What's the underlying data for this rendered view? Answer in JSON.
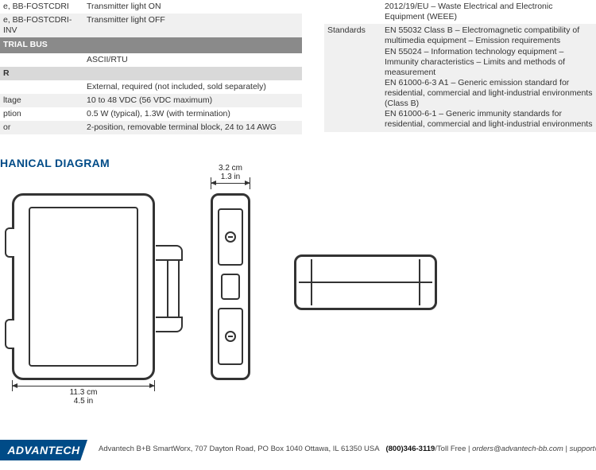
{
  "left_table": {
    "rows": [
      {
        "cls": "row-plain",
        "c0": "e, BB-FOSTCDRI",
        "c1": "Transmitter light ON"
      },
      {
        "cls": "row-alt",
        "c0": "e, BB-FOSTCDRI-INV",
        "c1": "Transmitter light OFF"
      }
    ],
    "section1_hdr": "TRIAL BUS",
    "section1_rows": [
      {
        "cls": "row-plain",
        "c0": "",
        "c1": "ASCII/RTU"
      }
    ],
    "section2_hdr": "R",
    "section2_rows": [
      {
        "cls": "row-plain",
        "c0": "",
        "c1": "External, required (not included, sold separately)"
      },
      {
        "cls": "row-alt",
        "c0": "ltage",
        "c1": "10 to 48 VDC (56 VDC maximum)"
      },
      {
        "cls": "row-plain",
        "c0": "ption",
        "c1": "0.5 W (typical), 1.3W (with termination)"
      },
      {
        "cls": "row-alt",
        "c0": "or",
        "c1": "2-position, removable terminal block, 24 to 14 AWG"
      }
    ]
  },
  "right_table": {
    "rows": [
      {
        "cls": "row-plain",
        "c0": "",
        "c1": "2012/19/EU – Waste Electrical and Electronic Equipment (WEEE)"
      },
      {
        "cls": "row-alt",
        "c0": "Standards",
        "c1": "EN 55032 Class B – Electromagnetic compatibility of multimedia equipment – Emission requirements\nEN 55024 – Information technology equipment – Immunity characteristics – Limits and methods of measurement\nEN 61000-6-3 A1 – Generic emission standard for residential, commercial and light-industrial environments (Class B)\nEN 61000-6-1 – Generic immunity standards for residential, commercial and light-industrial environments"
      }
    ]
  },
  "mech": {
    "title": "HANICAL DIAGRAM",
    "width_label_cm": "11.3 cm",
    "width_label_in": "4.5 in",
    "depth_label_cm": "3.2 cm",
    "depth_label_in": "1.3 in"
  },
  "footer": {
    "logo": "ADVANTECH",
    "addr": "Advantech B+B SmartWorx, 707 Dayton Road, PO Box 1040 Ottawa, IL 61350 USA",
    "phone": "(800)346-3119",
    "toll": "/Toll Free",
    "sep": "  |  ",
    "email1": "orders@advantech-bb.com",
    "email2": "support@advantech-bb"
  },
  "colors": {
    "brand": "#004b87",
    "hdr_bg": "#8a8a8a",
    "sub_bg": "#d9d9d9",
    "alt_bg": "#f0f0f0"
  }
}
